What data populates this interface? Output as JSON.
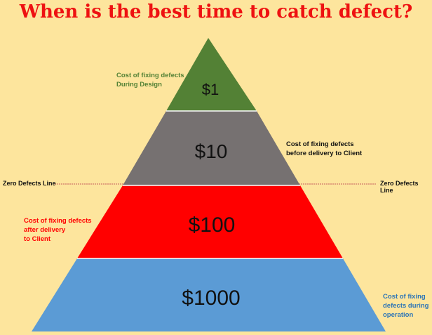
{
  "title": "When is the best time to catch defect?",
  "tiers": [
    {
      "label": "$1",
      "color": "#538135"
    },
    {
      "label": "$10",
      "color": "#767171"
    },
    {
      "label": "$100",
      "color": "#ff0000"
    },
    {
      "label": "$1000",
      "color": "#5b9bd5"
    }
  ],
  "captions": [
    {
      "text": "Cost of fixing defects\nDuring Design",
      "color": "#538135"
    },
    {
      "text": "Cost of fixing defects\nbefore delivery to Client",
      "color": "#111111"
    },
    {
      "text": "Cost of fixing defects\nafter delivery\nto Client",
      "color": "#ff0000"
    },
    {
      "text": "Cost of fixing\ndefects during\noperation",
      "color": "#2e75b6"
    }
  ],
  "zero_defects": {
    "left_label": "Zero Defects Line",
    "right_label": "Zero Defects Line",
    "line_color": "#c55a5a"
  }
}
